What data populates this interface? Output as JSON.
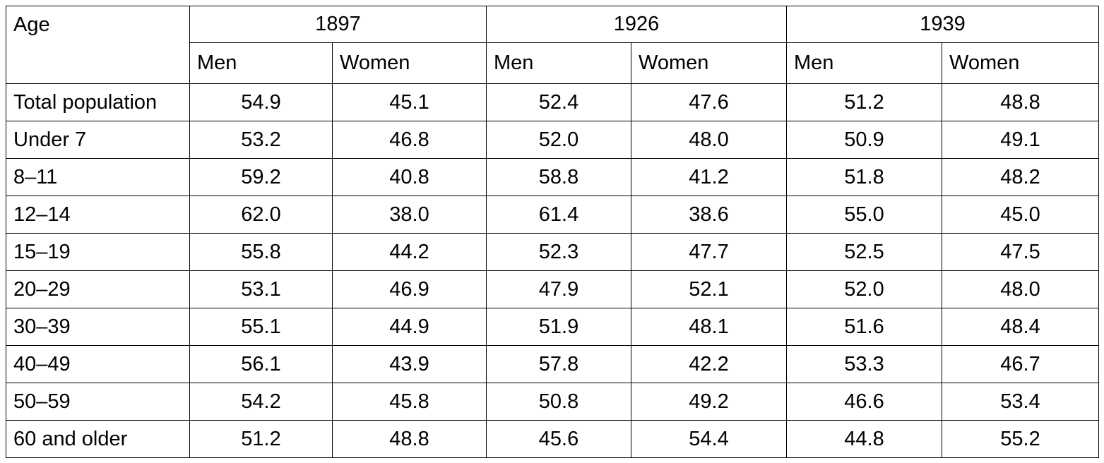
{
  "table": {
    "corner": "Age",
    "years": [
      "1897",
      "1926",
      "1939"
    ],
    "sexes": [
      "Men",
      "Women",
      "Men",
      "Women",
      "Men",
      "Women"
    ],
    "rows": [
      {
        "label": "Total population",
        "values": [
          "54.9",
          "45.1",
          "52.4",
          "47.6",
          "51.2",
          "48.8"
        ]
      },
      {
        "label": "Under 7",
        "values": [
          "53.2",
          "46.8",
          "52.0",
          "48.0",
          "50.9",
          "49.1"
        ]
      },
      {
        "label": "8–11",
        "values": [
          "59.2",
          "40.8",
          "58.8",
          "41.2",
          "51.8",
          "48.2"
        ]
      },
      {
        "label": "12–14",
        "values": [
          "62.0",
          "38.0",
          "61.4",
          "38.6",
          "55.0",
          "45.0"
        ]
      },
      {
        "label": "15–19",
        "values": [
          "55.8",
          "44.2",
          "52.3",
          "47.7",
          "52.5",
          "47.5"
        ]
      },
      {
        "label": "20–29",
        "values": [
          "53.1",
          "46.9",
          "47.9",
          "52.1",
          "52.0",
          "48.0"
        ]
      },
      {
        "label": "30–39",
        "values": [
          "55.1",
          "44.9",
          "51.9",
          "48.1",
          "51.6",
          "48.4"
        ]
      },
      {
        "label": "40–49",
        "values": [
          "56.1",
          "43.9",
          "57.8",
          "42.2",
          "53.3",
          "46.7"
        ]
      },
      {
        "label": "50–59",
        "values": [
          "54.2",
          "45.8",
          "50.8",
          "49.2",
          "46.6",
          "53.4"
        ]
      },
      {
        "label": "60 and older",
        "values": [
          "51.2",
          "48.8",
          "45.6",
          "54.4",
          "44.8",
          "55.2"
        ]
      }
    ]
  }
}
